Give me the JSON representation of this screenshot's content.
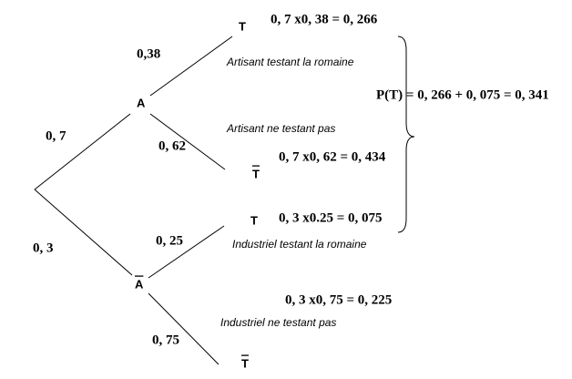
{
  "nodes": [
    {
      "label": "A"
    },
    {
      "label": "A"
    },
    {
      "label": "T"
    },
    {
      "label": "T"
    },
    {
      "label": "T"
    },
    {
      "label": "T"
    }
  ],
  "edges": [
    {
      "label": "0, 7"
    },
    {
      "label": "0, 3"
    },
    {
      "label": "0,38"
    },
    {
      "label": "0, 62"
    },
    {
      "label": "0, 25"
    },
    {
      "label": "0, 75"
    }
  ],
  "products": [
    "0, 7 x0, 38 = 0, 266",
    "0, 7 x0, 62 = 0, 434",
    "0, 3 x0.25 = 0, 075",
    "0, 3 x0, 75 = 0, 225"
  ],
  "annotations": [
    "Artisant testant la romaine",
    "Artisant ne testant pas",
    "Industriel testant la romaine",
    "Industriel ne testant pas"
  ],
  "total": "P(T) = 0, 266 + 0, 075 = 0, 341"
}
